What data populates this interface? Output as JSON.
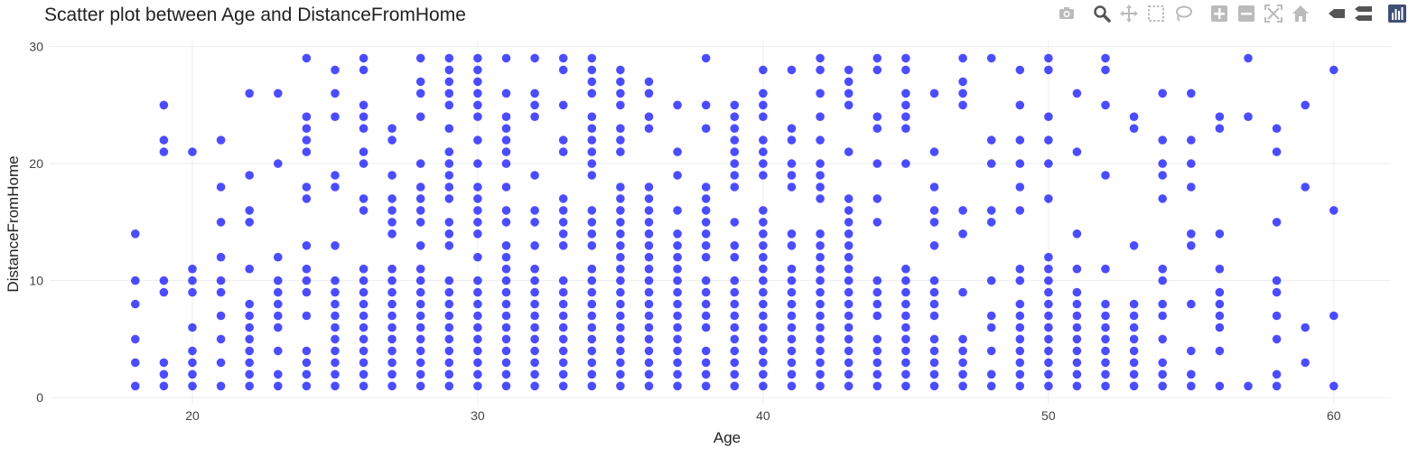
{
  "chart_data": {
    "type": "scatter",
    "title": "Scatter plot between Age and DistanceFromHome",
    "xlabel": "Age",
    "ylabel": "DistanceFromHome",
    "xlim": [
      15,
      62
    ],
    "ylim": [
      -0.6,
      30.5
    ],
    "x_ticks": [
      20,
      30,
      40,
      50,
      60
    ],
    "y_ticks": [
      0,
      10,
      20,
      30
    ],
    "grid": true,
    "legend": "none",
    "marker_color": "#0000ff",
    "marker_opacity": 0.7,
    "age_distance": {
      "18": [
        1,
        3,
        5,
        8,
        10,
        14
      ],
      "19": [
        1,
        2,
        3,
        9,
        10,
        21,
        22,
        25
      ],
      "20": [
        1,
        2,
        3,
        4,
        6,
        9,
        10,
        11,
        21
      ],
      "21": [
        1,
        3,
        5,
        7,
        9,
        10,
        12,
        15,
        18,
        22
      ],
      "22": [
        1,
        2,
        3,
        4,
        5,
        6,
        7,
        8,
        11,
        15,
        16,
        19,
        26
      ],
      "23": [
        1,
        2,
        4,
        6,
        7,
        8,
        9,
        10,
        12,
        20,
        26
      ],
      "24": [
        1,
        2,
        3,
        4,
        7,
        9,
        10,
        11,
        13,
        17,
        18,
        21,
        22,
        23,
        24,
        29
      ],
      "25": [
        1,
        2,
        3,
        4,
        5,
        6,
        7,
        8,
        9,
        10,
        13,
        18,
        19,
        24,
        26,
        28
      ],
      "26": [
        1,
        2,
        3,
        4,
        5,
        6,
        7,
        8,
        9,
        10,
        11,
        16,
        17,
        20,
        21,
        23,
        24,
        25,
        28,
        29
      ],
      "27": [
        1,
        2,
        3,
        4,
        5,
        6,
        7,
        8,
        9,
        10,
        11,
        14,
        15,
        16,
        17,
        19,
        22,
        23
      ],
      "28": [
        1,
        2,
        3,
        4,
        5,
        6,
        7,
        8,
        9,
        10,
        11,
        13,
        15,
        16,
        17,
        18,
        20,
        24,
        26,
        27,
        29
      ],
      "29": [
        1,
        2,
        3,
        4,
        5,
        6,
        7,
        8,
        9,
        10,
        13,
        14,
        15,
        17,
        18,
        19,
        20,
        21,
        23,
        25,
        26,
        27,
        28,
        29
      ],
      "30": [
        1,
        2,
        3,
        4,
        5,
        6,
        7,
        8,
        9,
        10,
        12,
        14,
        15,
        16,
        17,
        18,
        20,
        22,
        24,
        25,
        26,
        27,
        28,
        29
      ],
      "31": [
        1,
        2,
        3,
        4,
        5,
        6,
        7,
        8,
        9,
        10,
        11,
        12,
        13,
        15,
        16,
        18,
        20,
        21,
        22,
        23,
        24,
        26,
        29
      ],
      "32": [
        1,
        2,
        3,
        4,
        5,
        6,
        7,
        8,
        9,
        10,
        11,
        13,
        15,
        16,
        19,
        24,
        25,
        26,
        29
      ],
      "33": [
        1,
        2,
        3,
        4,
        5,
        6,
        7,
        8,
        9,
        10,
        13,
        14,
        15,
        16,
        17,
        21,
        22,
        25,
        28,
        29
      ],
      "34": [
        1,
        2,
        3,
        4,
        5,
        6,
        7,
        8,
        9,
        10,
        11,
        13,
        14,
        15,
        16,
        19,
        20,
        21,
        22,
        23,
        24,
        26,
        27,
        28,
        29
      ],
      "35": [
        1,
        2,
        3,
        4,
        5,
        6,
        7,
        8,
        9,
        10,
        11,
        12,
        13,
        14,
        15,
        16,
        17,
        18,
        21,
        22,
        23,
        25,
        26,
        27,
        28
      ],
      "36": [
        1,
        2,
        3,
        4,
        5,
        6,
        7,
        8,
        9,
        10,
        11,
        12,
        13,
        14,
        15,
        16,
        17,
        18,
        23,
        24,
        26,
        27
      ],
      "37": [
        1,
        2,
        3,
        4,
        5,
        6,
        7,
        8,
        9,
        10,
        11,
        12,
        13,
        14,
        16,
        19,
        21,
        25
      ],
      "38": [
        1,
        2,
        3,
        4,
        6,
        7,
        8,
        9,
        10,
        12,
        13,
        14,
        15,
        16,
        17,
        18,
        23,
        25,
        29
      ],
      "39": [
        1,
        2,
        3,
        4,
        5,
        6,
        7,
        8,
        9,
        10,
        12,
        13,
        15,
        18,
        19,
        20,
        21,
        22,
        23,
        24,
        25
      ],
      "40": [
        1,
        2,
        3,
        4,
        5,
        6,
        7,
        8,
        9,
        10,
        11,
        12,
        13,
        14,
        15,
        16,
        19,
        20,
        21,
        22,
        24,
        25,
        26,
        28
      ],
      "41": [
        1,
        2,
        3,
        4,
        5,
        6,
        7,
        8,
        9,
        10,
        11,
        13,
        14,
        18,
        19,
        20,
        22,
        23,
        28
      ],
      "42": [
        1,
        2,
        3,
        4,
        5,
        6,
        7,
        8,
        9,
        10,
        11,
        12,
        13,
        14,
        17,
        18,
        19,
        20,
        22,
        24,
        26,
        28,
        29
      ],
      "43": [
        1,
        2,
        3,
        4,
        5,
        6,
        7,
        8,
        9,
        10,
        11,
        12,
        13,
        14,
        15,
        16,
        17,
        21,
        25,
        26,
        27,
        28
      ],
      "44": [
        1,
        2,
        3,
        4,
        5,
        7,
        8,
        9,
        10,
        15,
        17,
        20,
        23,
        24,
        28,
        29
      ],
      "45": [
        1,
        2,
        3,
        4,
        5,
        6,
        7,
        8,
        9,
        10,
        11,
        20,
        23,
        24,
        25,
        26,
        28,
        29
      ],
      "46": [
        1,
        2,
        3,
        4,
        5,
        7,
        8,
        9,
        10,
        13,
        15,
        16,
        18,
        21,
        26
      ],
      "47": [
        1,
        2,
        3,
        4,
        5,
        9,
        14,
        16,
        25,
        26,
        27,
        29
      ],
      "48": [
        1,
        2,
        4,
        6,
        7,
        10,
        15,
        16,
        20,
        22,
        29
      ],
      "49": [
        1,
        2,
        3,
        4,
        5,
        6,
        7,
        8,
        10,
        11,
        16,
        18,
        20,
        22,
        25,
        28
      ],
      "50": [
        1,
        2,
        3,
        4,
        5,
        6,
        7,
        8,
        9,
        10,
        11,
        12,
        17,
        20,
        22,
        24,
        28,
        29
      ],
      "51": [
        1,
        2,
        3,
        4,
        5,
        6,
        7,
        8,
        9,
        11,
        14,
        21,
        26
      ],
      "52": [
        1,
        2,
        3,
        4,
        5,
        6,
        7,
        8,
        11,
        19,
        25,
        28,
        29
      ],
      "53": [
        1,
        2,
        3,
        4,
        5,
        6,
        7,
        8,
        13,
        23,
        24
      ],
      "54": [
        1,
        2,
        3,
        5,
        7,
        8,
        10,
        11,
        17,
        19,
        20,
        22,
        26
      ],
      "55": [
        1,
        2,
        4,
        8,
        13,
        14,
        18,
        20,
        22,
        26
      ],
      "56": [
        1,
        4,
        6,
        7,
        8,
        9,
        11,
        14,
        23,
        24
      ],
      "57": [
        1,
        24,
        29
      ],
      "58": [
        1,
        2,
        5,
        7,
        9,
        10,
        15,
        21,
        23
      ],
      "59": [
        3,
        6,
        18,
        25
      ],
      "60": [
        1,
        7,
        16,
        28
      ]
    }
  },
  "modebar": {
    "icons": [
      "camera-icon",
      "zoom-icon",
      "pan-icon",
      "box-select-icon",
      "lasso-icon",
      "zoom-in-icon",
      "zoom-out-icon",
      "autoscale-icon",
      "reset-axes-icon",
      "hover-closest-icon",
      "hover-compare-icon",
      "plotly-logo-icon"
    ]
  }
}
